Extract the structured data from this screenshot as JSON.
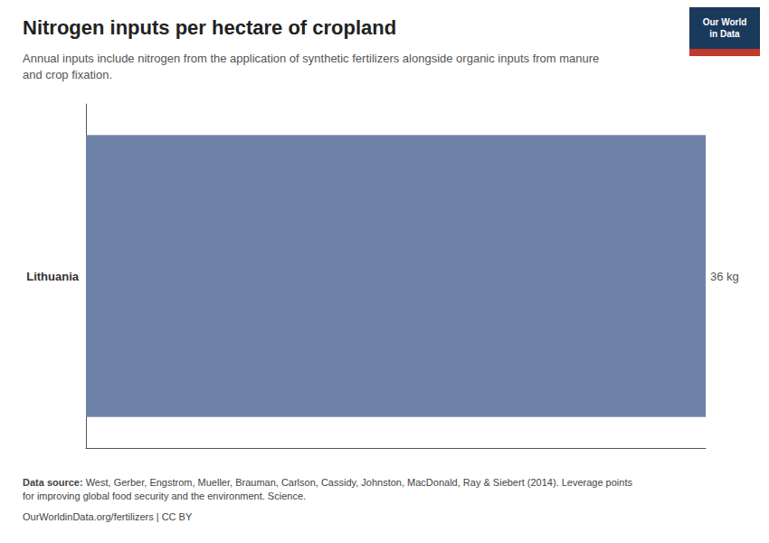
{
  "chart_data": {
    "type": "bar",
    "orientation": "horizontal",
    "title": "Nitrogen inputs per hectare of cropland",
    "subtitle": "Annual inputs include nitrogen from the application of synthetic fertilizers alongside organic inputs from manure\nand crop fixation.",
    "categories": [
      "Lithuania"
    ],
    "values": [
      36
    ],
    "value_labels": [
      "36 kg"
    ],
    "data_labels": true,
    "color": "#6e82a8",
    "xlim": [
      0,
      36
    ],
    "tick_labels": "y",
    "grid": false,
    "annotations": [
      "Our World\nin Data",
      "Data source:",
      " West, Gerber, Engstrom, Mueller, Brauman, Carlson, Cassidy, Johnston, MacDonald, Ray & Siebert (2014). Leverage points\nfor improving global food security and the environment. Science.",
      "OurWorldinData.org/fertilizers | CC BY"
    ]
  }
}
